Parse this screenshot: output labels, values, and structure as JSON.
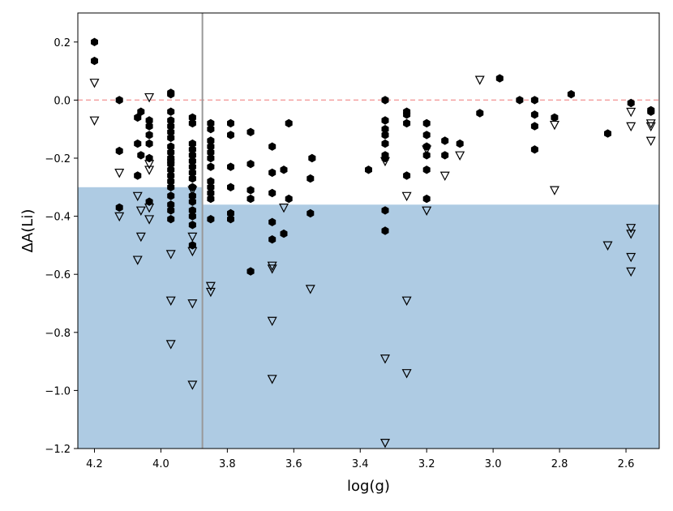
{
  "chart_data": {
    "type": "scatter",
    "xlabel": "log(g)",
    "ylabel": "ΔA(Li)",
    "xlim": [
      4.25,
      2.5
    ],
    "ylim": [
      -1.2,
      0.3
    ],
    "x_reversed": true,
    "x_ticks": [
      4.2,
      4.0,
      3.8,
      3.6,
      3.4,
      3.2,
      3.0,
      2.8,
      2.6
    ],
    "x_tick_labels": [
      "4.2",
      "4.0",
      "3.8",
      "3.6",
      "3.4",
      "3.2",
      "3.0",
      "2.8",
      "2.6"
    ],
    "y_ticks": [
      0.2,
      0.0,
      -0.2,
      -0.4,
      -0.6,
      -0.8,
      -1.0,
      -1.2
    ],
    "y_tick_labels": [
      "0.2",
      "0.0",
      "−0.2",
      "−0.4",
      "−0.6",
      "−0.8",
      "−1.0",
      "−1.2"
    ],
    "grid": false,
    "reference_line": {
      "y": 0.0,
      "style": "dashed",
      "color": "#f4a0a0"
    },
    "vertical_line": {
      "x": 3.875,
      "color": "#999999"
    },
    "shaded_regions": [
      {
        "x_from": 4.25,
        "x_to": 3.875,
        "y_from": -1.2,
        "y_to": -0.3,
        "color": "#aecbe3"
      },
      {
        "x_from": 3.875,
        "x_to": 2.5,
        "y_from": -1.2,
        "y_to": -0.36,
        "color": "#aecbe3"
      }
    ],
    "series": [
      {
        "marker": "filled-hexagon",
        "color": "#000000",
        "points": [
          [
            4.2,
            0.2
          ],
          [
            4.2,
            0.135
          ],
          [
            4.125,
            0.0
          ],
          [
            4.125,
            -0.175
          ],
          [
            4.125,
            -0.37
          ],
          [
            4.07,
            -0.06
          ],
          [
            4.07,
            -0.15
          ],
          [
            4.07,
            -0.26
          ],
          [
            4.06,
            -0.04
          ],
          [
            4.06,
            -0.19
          ],
          [
            4.035,
            -0.07
          ],
          [
            4.035,
            -0.09
          ],
          [
            4.035,
            -0.12
          ],
          [
            4.035,
            -0.15
          ],
          [
            4.035,
            -0.2
          ],
          [
            4.035,
            -0.35
          ],
          [
            3.97,
            0.025
          ],
          [
            3.97,
            0.02
          ],
          [
            3.97,
            -0.04
          ],
          [
            3.97,
            -0.07
          ],
          [
            3.97,
            -0.09
          ],
          [
            3.97,
            -0.11
          ],
          [
            3.97,
            -0.13
          ],
          [
            3.97,
            -0.16
          ],
          [
            3.97,
            -0.18
          ],
          [
            3.97,
            -0.2
          ],
          [
            3.97,
            -0.21
          ],
          [
            3.97,
            -0.22
          ],
          [
            3.97,
            -0.24
          ],
          [
            3.97,
            -0.26
          ],
          [
            3.97,
            -0.28
          ],
          [
            3.97,
            -0.3
          ],
          [
            3.97,
            -0.33
          ],
          [
            3.97,
            -0.36
          ],
          [
            3.97,
            -0.38
          ],
          [
            3.97,
            -0.41
          ],
          [
            3.905,
            -0.06
          ],
          [
            3.905,
            -0.08
          ],
          [
            3.905,
            -0.15
          ],
          [
            3.905,
            -0.17
          ],
          [
            3.905,
            -0.19
          ],
          [
            3.905,
            -0.21
          ],
          [
            3.905,
            -0.23
          ],
          [
            3.905,
            -0.25
          ],
          [
            3.905,
            -0.27
          ],
          [
            3.905,
            -0.3
          ],
          [
            3.905,
            -0.33
          ],
          [
            3.905,
            -0.35
          ],
          [
            3.905,
            -0.38
          ],
          [
            3.905,
            -0.4
          ],
          [
            3.905,
            -0.43
          ],
          [
            3.905,
            -0.5
          ],
          [
            3.85,
            -0.08
          ],
          [
            3.85,
            -0.1
          ],
          [
            3.85,
            -0.14
          ],
          [
            3.85,
            -0.16
          ],
          [
            3.85,
            -0.18
          ],
          [
            3.85,
            -0.2
          ],
          [
            3.85,
            -0.23
          ],
          [
            3.85,
            -0.28
          ],
          [
            3.85,
            -0.3
          ],
          [
            3.85,
            -0.32
          ],
          [
            3.85,
            -0.34
          ],
          [
            3.85,
            -0.41
          ],
          [
            3.79,
            -0.08
          ],
          [
            3.79,
            -0.12
          ],
          [
            3.79,
            -0.23
          ],
          [
            3.79,
            -0.3
          ],
          [
            3.79,
            -0.39
          ],
          [
            3.79,
            -0.41
          ],
          [
            3.73,
            -0.11
          ],
          [
            3.73,
            -0.22
          ],
          [
            3.73,
            -0.31
          ],
          [
            3.73,
            -0.34
          ],
          [
            3.73,
            -0.59
          ],
          [
            3.665,
            -0.16
          ],
          [
            3.665,
            -0.25
          ],
          [
            3.665,
            -0.32
          ],
          [
            3.665,
            -0.42
          ],
          [
            3.665,
            -0.48
          ],
          [
            3.63,
            -0.24
          ],
          [
            3.63,
            -0.46
          ],
          [
            3.615,
            -0.08
          ],
          [
            3.615,
            -0.34
          ],
          [
            3.55,
            -0.27
          ],
          [
            3.55,
            -0.39
          ],
          [
            3.545,
            -0.2
          ],
          [
            3.375,
            -0.24
          ],
          [
            3.325,
            0.0
          ],
          [
            3.325,
            -0.07
          ],
          [
            3.325,
            -0.1
          ],
          [
            3.325,
            -0.12
          ],
          [
            3.325,
            -0.15
          ],
          [
            3.325,
            -0.19
          ],
          [
            3.325,
            -0.2
          ],
          [
            3.325,
            -0.38
          ],
          [
            3.325,
            -0.45
          ],
          [
            3.26,
            -0.04
          ],
          [
            3.26,
            -0.05
          ],
          [
            3.26,
            -0.08
          ],
          [
            3.26,
            -0.26
          ],
          [
            3.2,
            -0.08
          ],
          [
            3.2,
            -0.12
          ],
          [
            3.2,
            -0.16
          ],
          [
            3.2,
            -0.19
          ],
          [
            3.2,
            -0.24
          ],
          [
            3.2,
            -0.34
          ],
          [
            3.145,
            -0.14
          ],
          [
            3.145,
            -0.19
          ],
          [
            3.1,
            -0.15
          ],
          [
            3.04,
            -0.045
          ],
          [
            2.98,
            0.075
          ],
          [
            2.92,
            0.0
          ],
          [
            2.875,
            0.0
          ],
          [
            2.875,
            -0.05
          ],
          [
            2.875,
            -0.09
          ],
          [
            2.875,
            -0.17
          ],
          [
            2.815,
            -0.06
          ],
          [
            2.765,
            0.02
          ],
          [
            2.655,
            -0.115
          ],
          [
            2.585,
            -0.01
          ],
          [
            2.525,
            -0.035
          ],
          [
            2.525,
            -0.04
          ]
        ]
      },
      {
        "marker": "open-triangle-down",
        "color": "#000000",
        "points": [
          [
            4.2,
            0.06
          ],
          [
            4.2,
            -0.07
          ],
          [
            4.125,
            -0.25
          ],
          [
            4.125,
            -0.4
          ],
          [
            4.07,
            -0.33
          ],
          [
            4.07,
            -0.55
          ],
          [
            4.06,
            -0.38
          ],
          [
            4.06,
            -0.47
          ],
          [
            4.035,
            0.01
          ],
          [
            4.035,
            -0.22
          ],
          [
            4.035,
            -0.24
          ],
          [
            4.035,
            -0.37
          ],
          [
            4.035,
            -0.41
          ],
          [
            3.97,
            -0.53
          ],
          [
            3.97,
            -0.69
          ],
          [
            3.97,
            -0.84
          ],
          [
            3.905,
            -0.31
          ],
          [
            3.905,
            -0.47
          ],
          [
            3.905,
            -0.52
          ],
          [
            3.905,
            -0.7
          ],
          [
            3.905,
            -0.98
          ],
          [
            3.85,
            -0.64
          ],
          [
            3.85,
            -0.66
          ],
          [
            3.665,
            -0.57
          ],
          [
            3.665,
            -0.58
          ],
          [
            3.665,
            -0.76
          ],
          [
            3.665,
            -0.96
          ],
          [
            3.63,
            -0.37
          ],
          [
            3.55,
            -0.65
          ],
          [
            3.325,
            -0.21
          ],
          [
            3.325,
            -0.89
          ],
          [
            3.325,
            -1.18
          ],
          [
            3.26,
            -0.33
          ],
          [
            3.26,
            -0.69
          ],
          [
            3.26,
            -0.94
          ],
          [
            3.2,
            -0.17
          ],
          [
            3.2,
            -0.38
          ],
          [
            3.145,
            -0.26
          ],
          [
            3.1,
            -0.19
          ],
          [
            3.04,
            0.07
          ],
          [
            2.815,
            -0.085
          ],
          [
            2.815,
            -0.31
          ],
          [
            2.655,
            -0.5
          ],
          [
            2.585,
            -0.04
          ],
          [
            2.585,
            -0.09
          ],
          [
            2.585,
            -0.44
          ],
          [
            2.585,
            -0.46
          ],
          [
            2.585,
            -0.54
          ],
          [
            2.585,
            -0.59
          ],
          [
            2.525,
            -0.08
          ],
          [
            2.525,
            -0.09
          ],
          [
            2.525,
            -0.14
          ]
        ]
      }
    ]
  }
}
